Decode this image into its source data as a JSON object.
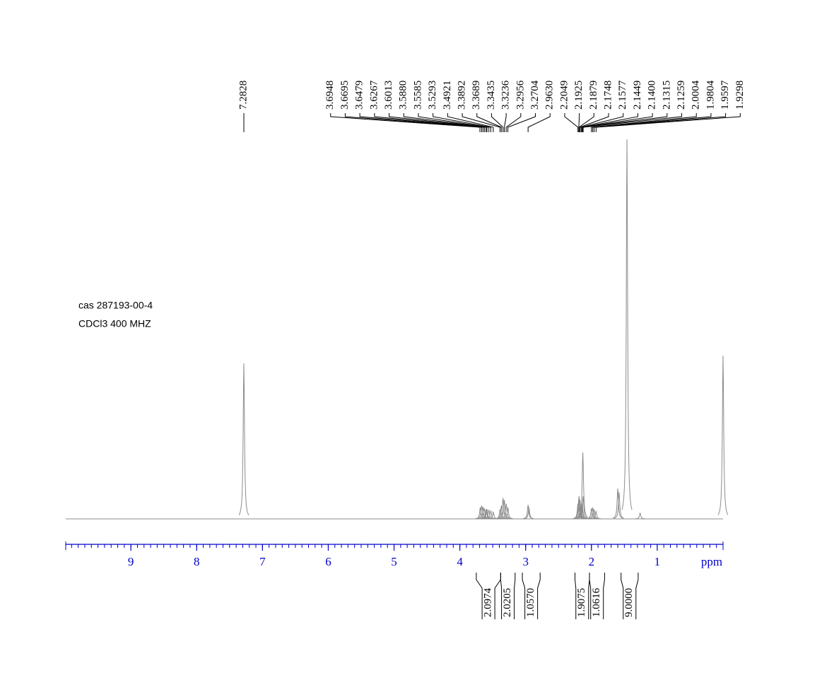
{
  "chart_data": {
    "type": "nmr",
    "sample": "cas 287193-00-4",
    "conditions": "CDCl3   400 MHZ",
    "x_label": "ppm",
    "xlim": [
      9.99,
      0
    ],
    "xticks": [
      9,
      8,
      7,
      6,
      5,
      4,
      3,
      2,
      1
    ],
    "colors": {
      "spectrum": "#8c8c8c",
      "axis": "#0000cc",
      "labels": "#000000"
    },
    "peak_labels": [
      7.2828,
      3.6948,
      3.6695,
      3.6479,
      3.6267,
      3.6013,
      {
        "value": 3.588,
        "label": "3.5880"
      },
      3.5585,
      3.5293,
      3.4921,
      3.3892,
      3.3689,
      3.3435,
      3.3236,
      3.2956,
      3.2704,
      {
        "value": 2.963,
        "label": "2.9630"
      },
      2.2049,
      2.1925,
      2.1879,
      2.1748,
      2.1577,
      2.1449,
      {
        "value": 2.14,
        "label": "2.1400"
      },
      2.1315,
      2.1259,
      2.0004,
      1.9804,
      1.9597,
      1.9298
    ],
    "peaks": {
      "x": [
        7.283,
        3.69,
        3.67,
        3.648,
        3.627,
        3.6,
        3.588,
        3.559,
        3.529,
        3.492,
        3.389,
        3.369,
        3.344,
        3.324,
        3.296,
        3.27,
        2.963,
        2.95,
        2.205,
        2.193,
        2.188,
        2.175,
        2.158,
        2.145,
        2.14,
        2.131,
        2.126,
        2.0,
        1.98,
        1.96,
        1.93,
        1.6,
        1.58,
        1.46,
        1.26,
        0.0
      ],
      "values": [
        41,
        3,
        3.5,
        3.2,
        2.8,
        2.5,
        2.6,
        2.4,
        2.2,
        1.8,
        2.5,
        3.5,
        5.5,
        5,
        4,
        3,
        3.7,
        3,
        4,
        5,
        6,
        5,
        3.5,
        4,
        4,
        17.5,
        6,
        2.8,
        3,
        2.5,
        2,
        8,
        7,
        100,
        1.5,
        43
      ]
    },
    "integrals": [
      {
        "value": 2.0974,
        "range": [
          3.75,
          3.38
        ]
      },
      {
        "value": 2.0205,
        "range": [
          3.38,
          3.16
        ]
      },
      {
        "value": {
          "value": 1.057,
          "label": "1.0570"
        },
        "range": [
          3.05,
          2.78
        ]
      },
      {
        "value": 1.9075,
        "range": [
          2.25,
          2.03
        ]
      },
      {
        "value": 1.0616,
        "range": [
          2.03,
          1.8
        ]
      },
      {
        "value": {
          "value": 9,
          "label": "9.0000"
        },
        "range": [
          1.55,
          1.29
        ]
      }
    ]
  }
}
